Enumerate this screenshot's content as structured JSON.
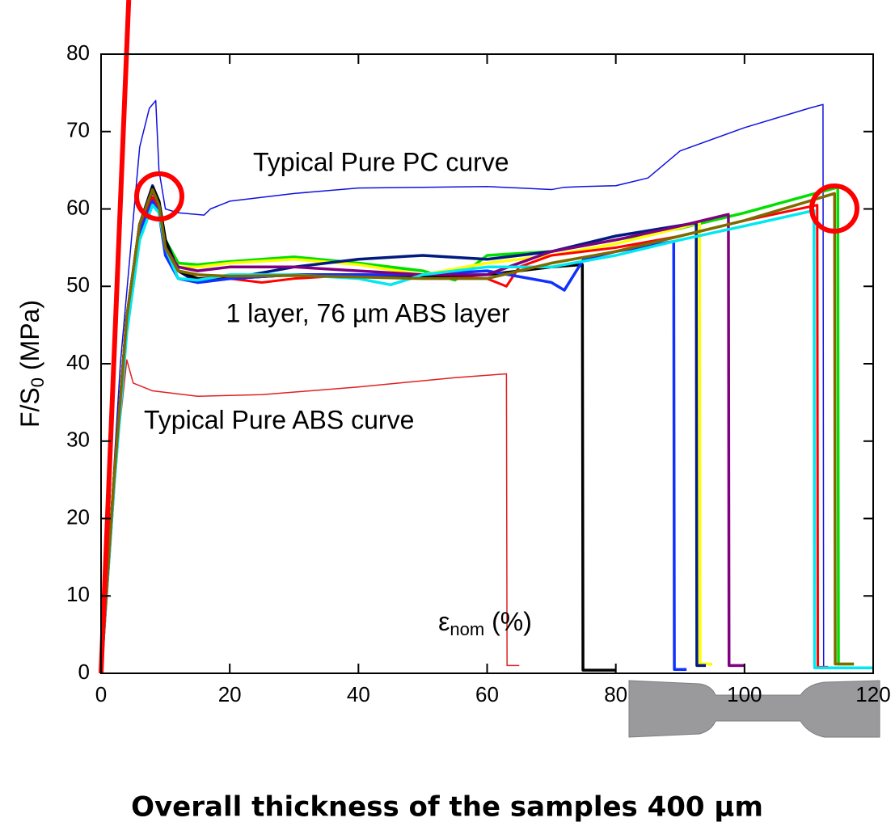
{
  "chart_data": {
    "type": "line",
    "xlabel": {
      "text": "ε",
      "sub": "nom",
      "rest": " (%)"
    },
    "ylabel": {
      "text": "F/S",
      "sub": "0",
      "rest": " (MPa)"
    },
    "xlim": [
      0,
      120
    ],
    "ylim": [
      0,
      80
    ],
    "xticks": [
      0,
      20,
      40,
      60,
      80,
      100,
      120
    ],
    "yticks": [
      0,
      10,
      20,
      30,
      40,
      50,
      60,
      70,
      80
    ],
    "annotations": [
      "Typical Pure PC curve",
      "1 layer, 76 µm ABS layer",
      "Typical Pure ABS curve"
    ],
    "caption": "Overall thickness of the samples 400 µm",
    "series": [
      {
        "color": "#1010e0",
        "line_width": 1.5,
        "x": [
          0,
          3,
          6,
          7.5,
          8.5,
          9,
          10,
          12,
          16,
          17,
          20,
          30,
          40,
          50,
          60,
          70,
          72,
          75,
          80,
          85,
          90,
          100,
          110,
          112.2,
          112.3,
          120
        ],
        "values": [
          0,
          40,
          68,
          73,
          74,
          65,
          60,
          59.5,
          59.2,
          60,
          61,
          62,
          62.7,
          62.8,
          62.9,
          62.5,
          62.8,
          62.9,
          63,
          64,
          67.5,
          70.5,
          73,
          73.5,
          0.8,
          0.8
        ]
      },
      {
        "color": "#e02020",
        "line_width": 1.5,
        "x": [
          0,
          2,
          4,
          5,
          8,
          15,
          25,
          40,
          55,
          63,
          63.1,
          65
        ],
        "values": [
          0,
          25,
          40.5,
          37.5,
          36.5,
          35.8,
          36,
          37,
          38.2,
          38.7,
          1,
          1
        ]
      },
      {
        "color": "#00e000",
        "line_width": 3.5,
        "x": [
          0,
          2,
          4,
          6,
          8,
          9,
          10,
          12,
          15,
          20,
          30,
          40,
          50,
          55,
          60,
          70,
          80,
          90,
          100,
          114.5,
          114.6,
          117
        ],
        "values": [
          0,
          25,
          46,
          58,
          62.5,
          61,
          56,
          53,
          52.8,
          53.2,
          53.8,
          53,
          52,
          50.8,
          54,
          54.5,
          56,
          57.5,
          59.5,
          62.8,
          1.2,
          1.2
        ]
      },
      {
        "color": "#ffff00",
        "line_width": 3.5,
        "x": [
          0,
          2,
          4,
          6,
          8,
          9,
          10,
          12,
          15,
          20,
          30,
          40,
          50,
          60,
          70,
          80,
          93,
          93.1,
          95
        ],
        "values": [
          0,
          25,
          46,
          58,
          62,
          60,
          55,
          52.5,
          52.5,
          53,
          53.5,
          52.8,
          51.5,
          53,
          54,
          55.5,
          58.2,
          1.2,
          1.2
        ]
      },
      {
        "color": "#ff0000",
        "line_width": 3,
        "x": [
          0,
          2,
          4,
          6,
          8,
          9,
          10,
          12,
          15,
          20,
          25,
          30,
          40,
          50,
          60,
          63,
          65,
          70,
          80,
          90,
          100,
          111.3,
          111.4,
          113
        ],
        "values": [
          0,
          24,
          45,
          57,
          61.5,
          60,
          55,
          52,
          51.5,
          51,
          50.5,
          51,
          51.5,
          51.5,
          51,
          50,
          52.5,
          54,
          55,
          56.5,
          58.5,
          60.5,
          0.8,
          0.8
        ]
      },
      {
        "color": "#001a80",
        "line_width": 3.5,
        "x": [
          0,
          2,
          4,
          6,
          8,
          9,
          10,
          12,
          15,
          20,
          30,
          40,
          50,
          60,
          70,
          80,
          92.5,
          92.6,
          94
        ],
        "values": [
          0,
          25,
          46,
          58,
          63,
          61,
          56,
          52,
          50.5,
          51,
          52.5,
          53.5,
          54,
          53.5,
          54.5,
          56.5,
          58.2,
          1,
          1
        ]
      },
      {
        "color": "#000000",
        "line_width": 3.5,
        "x": [
          0,
          2,
          4,
          6,
          8,
          9,
          10,
          12,
          15,
          20,
          30,
          40,
          50,
          60,
          70,
          74.8,
          74.9,
          80
        ],
        "values": [
          0,
          25,
          46,
          58,
          62.8,
          61,
          56,
          52,
          51,
          51,
          51.5,
          51.5,
          51.3,
          51.5,
          52.5,
          52.8,
          0.4,
          0.4
        ]
      },
      {
        "color": "#1030ff",
        "line_width": 3.5,
        "x": [
          0,
          2,
          4,
          6,
          8,
          9,
          10,
          12,
          15,
          20,
          30,
          40,
          50,
          60,
          70,
          72,
          75,
          80,
          89,
          89.1,
          91
        ],
        "values": [
          0,
          24,
          45,
          57,
          61,
          59.5,
          54,
          51,
          50.5,
          51,
          51.5,
          51.5,
          51.5,
          52,
          50.5,
          49.5,
          53.5,
          54.5,
          55.8,
          0.5,
          0.5
        ]
      },
      {
        "color": "#800080",
        "line_width": 3.5,
        "x": [
          0,
          2,
          4,
          6,
          8,
          9,
          10,
          12,
          15,
          20,
          30,
          40,
          50,
          60,
          70,
          80,
          90,
          97.5,
          97.6,
          100
        ],
        "values": [
          0,
          25,
          46,
          58,
          62.3,
          60.5,
          55,
          52.5,
          52,
          52.5,
          52.5,
          52,
          51.5,
          51.5,
          54.5,
          56,
          57.8,
          59.3,
          1,
          1
        ]
      },
      {
        "color": "#00e8f0",
        "line_width": 3.5,
        "x": [
          0,
          2,
          4,
          6,
          8,
          9,
          10,
          12,
          15,
          20,
          30,
          40,
          45,
          50,
          60,
          70,
          80,
          90,
          100,
          110.8,
          110.9,
          120
        ],
        "values": [
          0,
          24,
          44,
          56,
          60.5,
          59.5,
          55,
          51,
          50.8,
          51.5,
          51.5,
          51,
          50.2,
          51.5,
          52.5,
          52.5,
          54,
          56,
          57.8,
          59.8,
          0.7,
          0.7
        ]
      },
      {
        "color": "#7f6a00",
        "line_width": 3.5,
        "x": [
          0,
          2,
          4,
          6,
          8,
          9,
          10,
          12,
          15,
          20,
          30,
          40,
          50,
          60,
          70,
          80,
          90,
          100,
          114,
          114.1,
          117
        ],
        "values": [
          0,
          25,
          46,
          58,
          62.5,
          60.5,
          55,
          52,
          51.5,
          51.3,
          51.4,
          51.2,
          51,
          51,
          53,
          54.5,
          56.5,
          58.5,
          62,
          1.2,
          1.2
        ]
      },
      {
        "color": "#ff0000",
        "line_width": 6,
        "x": [
          0,
          4.3
        ],
        "values": [
          0,
          87
        ]
      }
    ]
  }
}
